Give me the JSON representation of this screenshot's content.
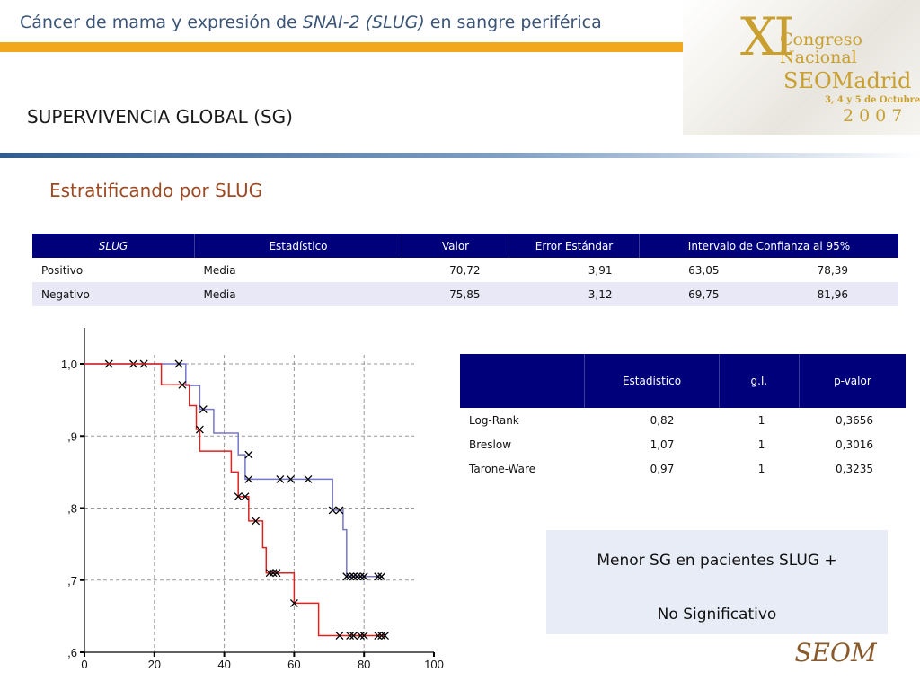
{
  "header": {
    "title_before": "Cáncer de mama y expresión de ",
    "title_italic": "SNAI-2 (SLUG)",
    "title_after": " en sangre periférica"
  },
  "logo": {
    "numeral": "XI",
    "line1": "Congreso",
    "line2": "Nacional",
    "brand": "SEOMadrid",
    "dates": "3, 4 y 5 de Octubre",
    "year": "2007"
  },
  "section_title": "SUPERVIVENCIA GLOBAL (SG)",
  "subtitle": "Estratificando por SLUG",
  "means_table": {
    "headers": [
      "SLUG",
      "Estadístico",
      "Valor",
      "Error Estándar",
      "Intervalo de Confianza al  95%"
    ],
    "rows": [
      {
        "slug": "Positivo",
        "stat": "Media",
        "valor": "70,72",
        "error": "3,91",
        "ci_low": "63,05",
        "ci_high": "78,39"
      },
      {
        "slug": "Negativo",
        "stat": "Media",
        "valor": "75,85",
        "error": "3,12",
        "ci_low": "69,75",
        "ci_high": "81,96"
      }
    ]
  },
  "tests_table": {
    "headers": [
      "",
      "Estadístico",
      "g.l.",
      "p-valor"
    ],
    "rows": [
      {
        "test": "Log-Rank",
        "stat": "0,82",
        "df": "1",
        "p": "0,3656"
      },
      {
        "test": "Breslow",
        "stat": "1,07",
        "df": "1",
        "p": "0,3016"
      },
      {
        "test": "Tarone-Ware",
        "stat": "0,97",
        "df": "1",
        "p": "0,3235"
      }
    ]
  },
  "info": {
    "line1": "Menor SG en pacientes SLUG +",
    "line2": "No Significativo"
  },
  "footer_logo": "SEOM",
  "chart_data": {
    "type": "line",
    "subtype": "kaplan-meier-step",
    "xlim": [
      0,
      100
    ],
    "ylim": [
      0.6,
      1.0
    ],
    "x_ticks": [
      0,
      20,
      40,
      60,
      80,
      100
    ],
    "x_tick_labels": [
      "0",
      "20",
      "40",
      "60",
      "80",
      "100"
    ],
    "y_ticks": [
      0.6,
      0.7,
      0.8,
      0.9,
      1.0
    ],
    "y_tick_labels": [
      ",6",
      ",7",
      ",8",
      ",9",
      "1,0"
    ],
    "grid": "dashed",
    "series": [
      {
        "color": "#7777cc",
        "steps": [
          [
            0,
            1.0
          ],
          [
            29,
            1.0
          ],
          [
            29,
            0.97
          ],
          [
            33,
            0.97
          ],
          [
            33,
            0.937
          ],
          [
            37,
            0.937
          ],
          [
            37,
            0.904
          ],
          [
            44,
            0.904
          ],
          [
            44,
            0.874
          ],
          [
            46,
            0.874
          ],
          [
            46,
            0.84
          ],
          [
            71,
            0.84
          ],
          [
            71,
            0.797
          ],
          [
            74,
            0.797
          ],
          [
            74,
            0.77
          ],
          [
            75,
            0.77
          ],
          [
            75,
            0.705
          ],
          [
            85,
            0.705
          ]
        ],
        "censored": [
          [
            7,
            1.0
          ],
          [
            14,
            1.0
          ],
          [
            17,
            1.0
          ],
          [
            27,
            1.0
          ],
          [
            34,
            0.937
          ],
          [
            47,
            0.874
          ],
          [
            47,
            0.84
          ],
          [
            56,
            0.84
          ],
          [
            59,
            0.84
          ],
          [
            64,
            0.84
          ],
          [
            71,
            0.797
          ],
          [
            73,
            0.797
          ],
          [
            75,
            0.705
          ],
          [
            76,
            0.705
          ],
          [
            77,
            0.705
          ],
          [
            78,
            0.705
          ],
          [
            79,
            0.705
          ],
          [
            80,
            0.705
          ],
          [
            84,
            0.705
          ],
          [
            85,
            0.705
          ]
        ]
      },
      {
        "color": "#dd2222",
        "steps": [
          [
            0,
            1.0
          ],
          [
            22,
            1.0
          ],
          [
            22,
            0.971
          ],
          [
            30,
            0.971
          ],
          [
            30,
            0.942
          ],
          [
            32,
            0.942
          ],
          [
            32,
            0.909
          ],
          [
            33,
            0.909
          ],
          [
            33,
            0.879
          ],
          [
            42,
            0.879
          ],
          [
            42,
            0.85
          ],
          [
            44,
            0.85
          ],
          [
            44,
            0.816
          ],
          [
            47,
            0.816
          ],
          [
            47,
            0.782
          ],
          [
            51,
            0.782
          ],
          [
            51,
            0.745
          ],
          [
            52,
            0.745
          ],
          [
            52,
            0.71
          ],
          [
            60,
            0.71
          ],
          [
            60,
            0.668
          ],
          [
            67,
            0.668
          ],
          [
            67,
            0.623
          ],
          [
            86,
            0.623
          ]
        ],
        "censored": [
          [
            28,
            0.971
          ],
          [
            33,
            0.909
          ],
          [
            44,
            0.816
          ],
          [
            46,
            0.816
          ],
          [
            49,
            0.782
          ],
          [
            53,
            0.71
          ],
          [
            54,
            0.71
          ],
          [
            55,
            0.71
          ],
          [
            60,
            0.668
          ],
          [
            73,
            0.623
          ],
          [
            76,
            0.623
          ],
          [
            77,
            0.623
          ],
          [
            79,
            0.623
          ],
          [
            80,
            0.623
          ],
          [
            84,
            0.623
          ],
          [
            85,
            0.623
          ],
          [
            86,
            0.623
          ]
        ]
      }
    ]
  }
}
